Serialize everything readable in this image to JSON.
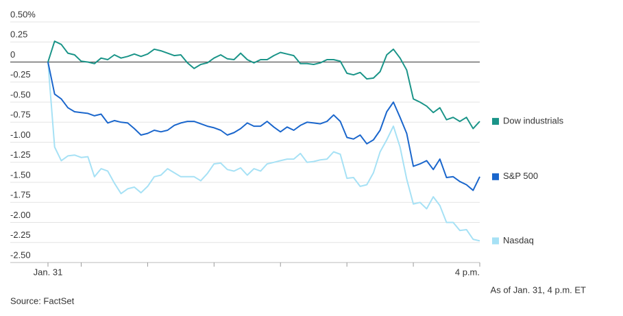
{
  "chart_data": {
    "type": "line",
    "categories": [
      "Jan. 31",
      null,
      null,
      null,
      null,
      null,
      null,
      null,
      null,
      null,
      null,
      null,
      null,
      null,
      null,
      null,
      null,
      null,
      null,
      null,
      null,
      null,
      null,
      null,
      null,
      null,
      null,
      null,
      null,
      null,
      null,
      null,
      null,
      null,
      null,
      null,
      null,
      null,
      null,
      null,
      null,
      null,
      null,
      null,
      null,
      null,
      null,
      null,
      null,
      null,
      null,
      null,
      null,
      null,
      null,
      null,
      null,
      null,
      null,
      null,
      null,
      null,
      null,
      null,
      null,
      "4 p.m."
    ],
    "series": [
      {
        "name": "Dow industrials",
        "color": "#1a9488",
        "values": [
          0,
          0.26,
          0.22,
          0.11,
          0.09,
          0.01,
          0,
          -0.02,
          0.05,
          0.03,
          0.09,
          0.05,
          0.07,
          0.1,
          0.07,
          0.1,
          0.16,
          0.14,
          0.11,
          0.08,
          0.09,
          -0.01,
          -0.08,
          -0.03,
          -0.01,
          0.05,
          0.09,
          0.04,
          0.03,
          0.11,
          0.03,
          -0.01,
          0.03,
          0.03,
          0.08,
          0.12,
          0.1,
          0.08,
          -0.02,
          -0.02,
          -0.03,
          -0.01,
          0.03,
          0.03,
          0.01,
          -0.14,
          -0.16,
          -0.13,
          -0.21,
          -0.2,
          -0.12,
          0.09,
          0.16,
          0.05,
          -0.1,
          -0.46,
          -0.5,
          -0.55,
          -0.63,
          -0.57,
          -0.72,
          -0.69,
          -0.74,
          -0.69,
          -0.83,
          -0.74
        ]
      },
      {
        "name": "S&P 500",
        "color": "#1a66cc",
        "values": [
          0,
          -0.4,
          -0.46,
          -0.57,
          -0.62,
          -0.63,
          -0.64,
          -0.67,
          -0.65,
          -0.76,
          -0.73,
          -0.75,
          -0.76,
          -0.83,
          -0.91,
          -0.89,
          -0.85,
          -0.87,
          -0.85,
          -0.79,
          -0.76,
          -0.74,
          -0.74,
          -0.77,
          -0.8,
          -0.82,
          -0.85,
          -0.91,
          -0.88,
          -0.83,
          -0.76,
          -0.8,
          -0.8,
          -0.74,
          -0.81,
          -0.87,
          -0.81,
          -0.85,
          -0.79,
          -0.75,
          -0.76,
          -0.77,
          -0.74,
          -0.66,
          -0.74,
          -0.94,
          -0.96,
          -0.91,
          -1.02,
          -0.97,
          -0.85,
          -0.62,
          -0.5,
          -0.69,
          -0.89,
          -1.3,
          -1.27,
          -1.23,
          -1.34,
          -1.21,
          -1.44,
          -1.43,
          -1.49,
          -1.53,
          -1.6,
          -1.43
        ]
      },
      {
        "name": "Nasdaq",
        "color": "#a6e1f5",
        "values": [
          0,
          -1.06,
          -1.23,
          -1.17,
          -1.16,
          -1.19,
          -1.18,
          -1.43,
          -1.33,
          -1.36,
          -1.51,
          -1.64,
          -1.58,
          -1.56,
          -1.63,
          -1.55,
          -1.43,
          -1.41,
          -1.33,
          -1.38,
          -1.43,
          -1.43,
          -1.43,
          -1.48,
          -1.39,
          -1.27,
          -1.26,
          -1.34,
          -1.36,
          -1.32,
          -1.41,
          -1.33,
          -1.36,
          -1.27,
          -1.25,
          -1.23,
          -1.21,
          -1.21,
          -1.14,
          -1.25,
          -1.24,
          -1.22,
          -1.21,
          -1.12,
          -1.15,
          -1.45,
          -1.44,
          -1.55,
          -1.53,
          -1.38,
          -1.12,
          -0.97,
          -0.8,
          -1.06,
          -1.46,
          -1.77,
          -1.75,
          -1.83,
          -1.68,
          -1.79,
          -2.0,
          -2.0,
          -2.1,
          -2.09,
          -2.21,
          -2.23
        ]
      }
    ],
    "ylim": [
      -2.5,
      0.5
    ],
    "yticks": [
      {
        "value": 0.5,
        "label": "0.50%"
      },
      0.25,
      0,
      -0.25,
      {
        "value": -0.5,
        "label": "-0.50"
      },
      -0.75,
      {
        "value": -1,
        "label": "-1.00"
      },
      -1.25,
      {
        "value": -1.5,
        "label": "-1.50"
      },
      -1.75,
      {
        "value": -2,
        "label": "-2.00"
      },
      -2.25,
      {
        "value": -2.5,
        "label": "-2.50"
      }
    ],
    "grid": true,
    "legend": "right",
    "note": "As of Jan. 31, 4 p.m. ET",
    "source": "Source: FactSet"
  }
}
